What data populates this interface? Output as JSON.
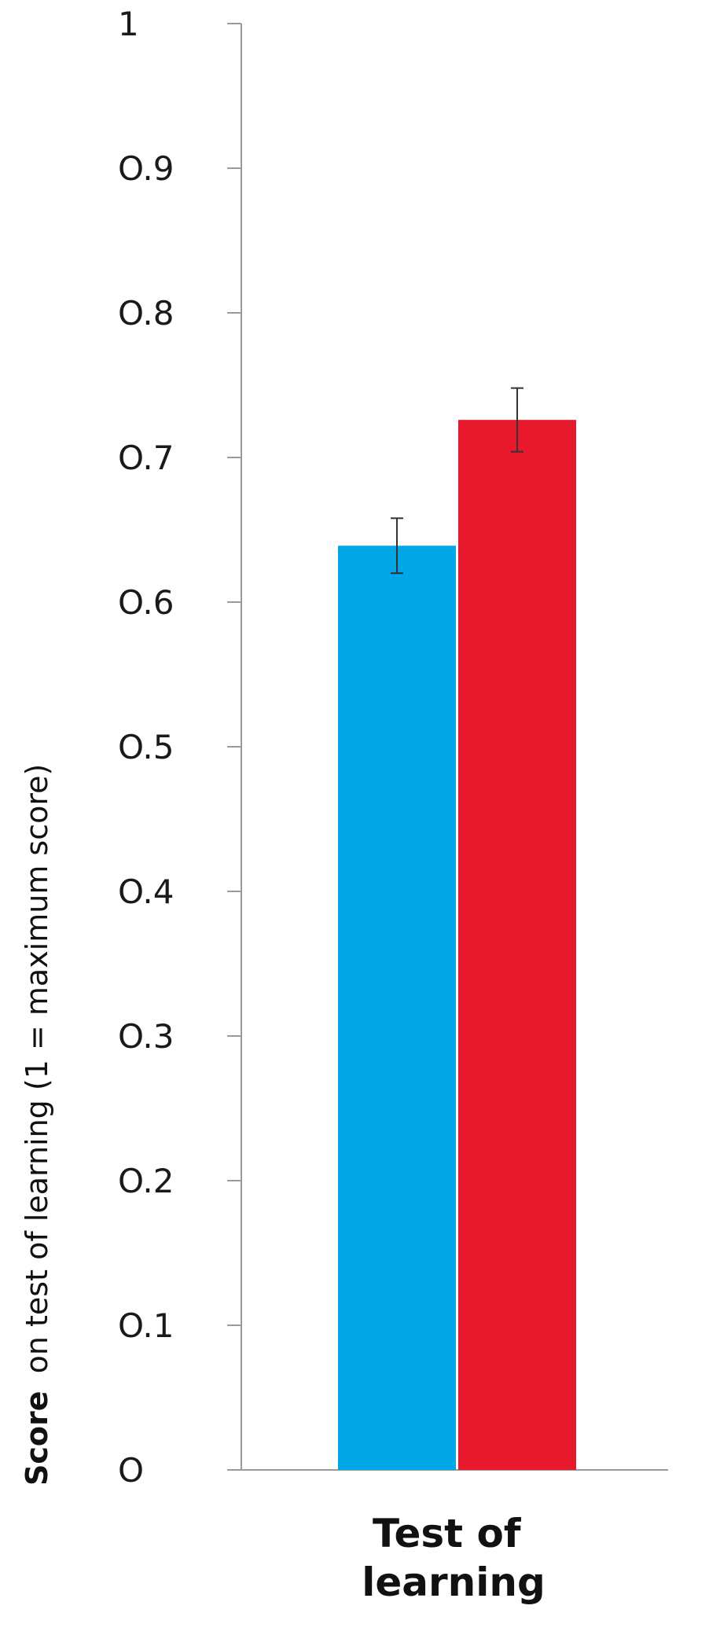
{
  "chart_data": {
    "type": "bar",
    "categories": [
      "Test of learning"
    ],
    "category_lines": [
      "Test of",
      "learning"
    ],
    "series": [
      {
        "values": [
          0.639
        ],
        "error": [
          0.019
        ],
        "color": "#00a6e6"
      },
      {
        "values": [
          0.726
        ],
        "error": [
          0.022
        ],
        "color": "#e8192c"
      }
    ],
    "title": "",
    "xlabel": "",
    "ylabel": "Score on test of learning (1 = maximum score)",
    "ylabel_parts": {
      "bold": "Score",
      "rest": "on test of learning  (1 = maximum score)"
    },
    "ylim": [
      0,
      1
    ],
    "yticks": [
      0,
      0.1,
      0.2,
      0.3,
      0.4,
      0.5,
      0.6,
      0.7,
      0.8,
      0.9,
      1
    ],
    "ytick_labels": [
      "O",
      "O.1",
      "O.2",
      "O.3",
      "O.4",
      "O.5",
      "O.6",
      "O.7",
      "O.8",
      "O.9",
      "1"
    ],
    "grid": false,
    "legend": "none"
  }
}
